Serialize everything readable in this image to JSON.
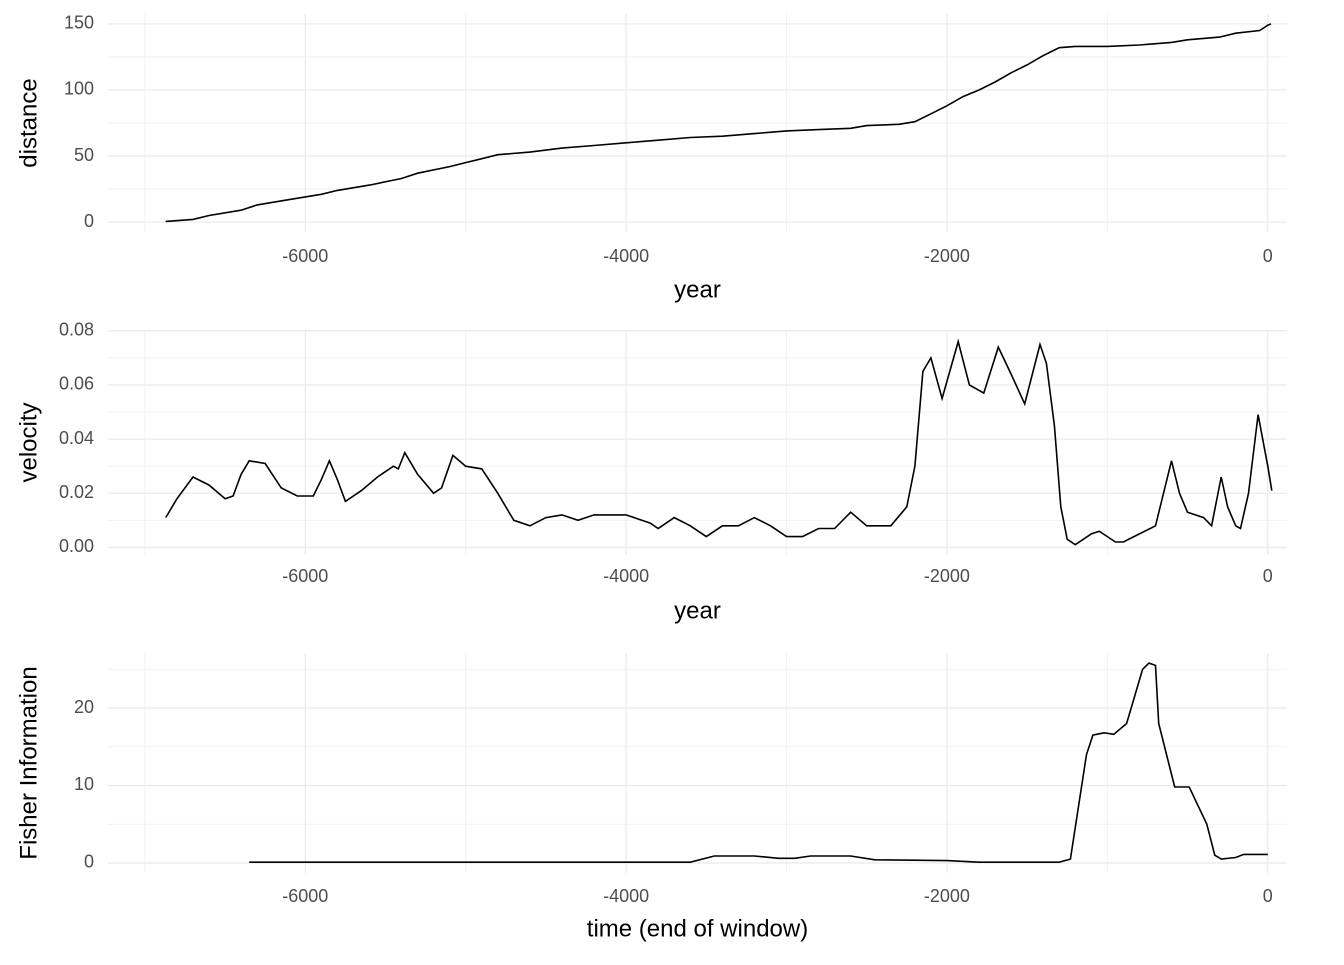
{
  "chart_data": [
    {
      "type": "line",
      "xlabel": "year",
      "ylabel": "distance",
      "xlim": [
        -7230,
        120
      ],
      "ylim": [
        -7.5,
        157.5
      ],
      "xticks": [
        -6000,
        -4000,
        -2000,
        0
      ],
      "yticks": [
        0,
        50,
        100,
        150
      ],
      "grid": true,
      "series": [
        {
          "color": "#000000",
          "x": [
            -6870,
            -6700,
            -6600,
            -6400,
            -6300,
            -6100,
            -5900,
            -5800,
            -5600,
            -5400,
            -5300,
            -5100,
            -5000,
            -4900,
            -4800,
            -4600,
            -4400,
            -4200,
            -4000,
            -3800,
            -3600,
            -3400,
            -3200,
            -3000,
            -2800,
            -2600,
            -2500,
            -2300,
            -2200,
            -2100,
            -2000,
            -1900,
            -1800,
            -1700,
            -1600,
            -1500,
            -1400,
            -1300,
            -1200,
            -1000,
            -800,
            -600,
            -500,
            -300,
            -200,
            -50,
            0,
            20
          ],
          "values": [
            0.5,
            2,
            5,
            9,
            13,
            17,
            21,
            24,
            28,
            33,
            37,
            42,
            45,
            48,
            51,
            53,
            56,
            58,
            60,
            62,
            64,
            65,
            67,
            69,
            70,
            71,
            73,
            74,
            76,
            82,
            88,
            95,
            100,
            106,
            113,
            119,
            126,
            132,
            133,
            133,
            134,
            136,
            138,
            140,
            143,
            145,
            149,
            150
          ]
        }
      ]
    },
    {
      "type": "line",
      "xlabel": "year",
      "ylabel": "velocity",
      "xlim": [
        -7230,
        120
      ],
      "ylim": [
        -0.0028,
        0.0803
      ],
      "xticks": [
        -6000,
        -4000,
        -2000,
        0
      ],
      "yticks": [
        {
          "value": 0,
          "label": "0.00"
        },
        {
          "value": 0.02,
          "label": "0.02"
        },
        {
          "value": 0.04,
          "label": "0.04"
        },
        {
          "value": 0.06,
          "label": "0.06"
        },
        {
          "value": 0.08,
          "label": "0.08"
        }
      ],
      "grid": true,
      "series": [
        {
          "color": "#000000",
          "x": [
            -6870,
            -6800,
            -6700,
            -6600,
            -6500,
            -6450,
            -6400,
            -6350,
            -6250,
            -6150,
            -6050,
            -5950,
            -5900,
            -5850,
            -5800,
            -5750,
            -5650,
            -5550,
            -5450,
            -5420,
            -5380,
            -5300,
            -5200,
            -5150,
            -5080,
            -5000,
            -4900,
            -4800,
            -4700,
            -4600,
            -4500,
            -4400,
            -4300,
            -4200,
            -4000,
            -3850,
            -3800,
            -3700,
            -3600,
            -3500,
            -3400,
            -3300,
            -3200,
            -3100,
            -3000,
            -2900,
            -2800,
            -2700,
            -2600,
            -2500,
            -2350,
            -2250,
            -2200,
            -2150,
            -2100,
            -2030,
            -1930,
            -1860,
            -1770,
            -1680,
            -1600,
            -1515,
            -1420,
            -1380,
            -1330,
            -1290,
            -1250,
            -1200,
            -1100,
            -1050,
            -950,
            -900,
            -800,
            -700,
            -650,
            -600,
            -550,
            -500,
            -400,
            -350,
            -290,
            -250,
            -200,
            -170,
            -120,
            -60,
            0,
            25
          ],
          "values": [
            0.011,
            0.018,
            0.026,
            0.023,
            0.018,
            0.019,
            0.027,
            0.032,
            0.031,
            0.022,
            0.019,
            0.019,
            0.025,
            0.032,
            0.025,
            0.017,
            0.021,
            0.026,
            0.03,
            0.029,
            0.035,
            0.027,
            0.02,
            0.022,
            0.034,
            0.03,
            0.029,
            0.02,
            0.01,
            0.008,
            0.011,
            0.012,
            0.01,
            0.012,
            0.012,
            0.009,
            0.007,
            0.011,
            0.008,
            0.004,
            0.008,
            0.008,
            0.011,
            0.008,
            0.004,
            0.004,
            0.007,
            0.007,
            0.013,
            0.008,
            0.008,
            0.015,
            0.03,
            0.065,
            0.07,
            0.055,
            0.076,
            0.06,
            0.057,
            0.074,
            0.064,
            0.053,
            0.075,
            0.068,
            0.045,
            0.015,
            0.003,
            0.001,
            0.005,
            0.006,
            0.002,
            0.002,
            0.005,
            0.008,
            0.02,
            0.032,
            0.02,
            0.013,
            0.011,
            0.008,
            0.026,
            0.015,
            0.008,
            0.007,
            0.02,
            0.049,
            0.03,
            0.021
          ]
        }
      ]
    },
    {
      "type": "line",
      "xlabel": "time (end of window)",
      "ylabel": "Fisher Information",
      "xlim": [
        -7230,
        120
      ],
      "ylim": [
        -1.3,
        27.1
      ],
      "xticks": [
        -6000,
        -4000,
        -2000,
        0
      ],
      "yticks": [
        0,
        10,
        20
      ],
      "grid": true,
      "series": [
        {
          "color": "#000000",
          "x": [
            -6350,
            -3600,
            -3450,
            -3200,
            -3050,
            -2950,
            -2850,
            -2600,
            -2450,
            -2000,
            -1800,
            -1300,
            -1230,
            -1130,
            -1090,
            -1020,
            -960,
            -880,
            -780,
            -740,
            -700,
            -680,
            -580,
            -490,
            -380,
            -330,
            -290,
            -200,
            -150,
            0
          ],
          "values": [
            0.1,
            0.1,
            0.9,
            0.9,
            0.6,
            0.6,
            0.9,
            0.9,
            0.4,
            0.3,
            0.1,
            0.1,
            0.5,
            14,
            16.5,
            16.8,
            16.6,
            18,
            25,
            25.8,
            25.5,
            18,
            9.8,
            9.8,
            5,
            1,
            0.5,
            0.7,
            1.1,
            1.1
          ]
        }
      ]
    }
  ]
}
